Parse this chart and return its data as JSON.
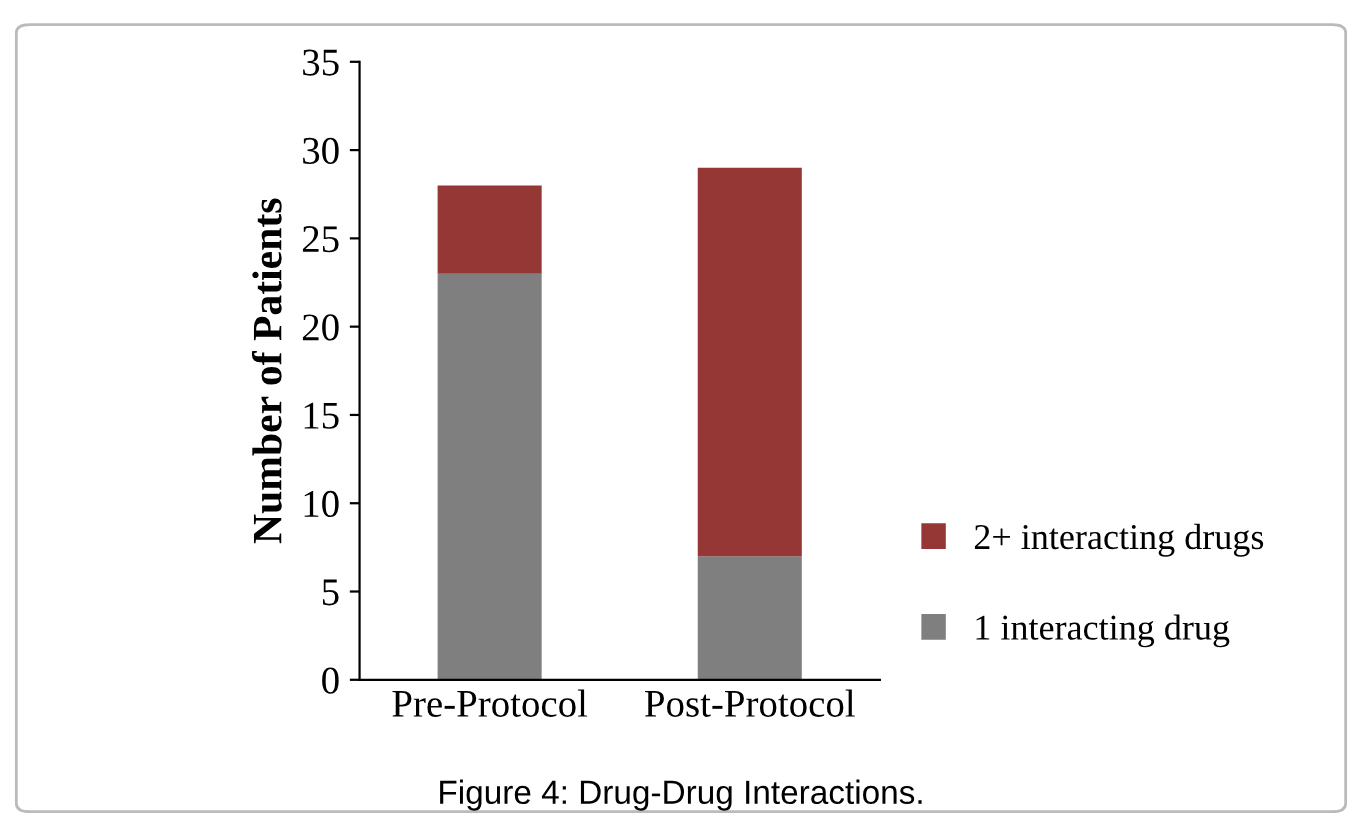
{
  "chart_data": {
    "type": "bar",
    "stacked": true,
    "ylabel": "Number of Patients",
    "categories": [
      "Pre-Protocol",
      "Post-Protocol"
    ],
    "series": [
      {
        "name": "1 interacting drug",
        "color": "#7f7f7f",
        "values": [
          23,
          7
        ]
      },
      {
        "name": "2+ interacting drugs",
        "color": "#953735",
        "values": [
          5,
          22
        ]
      }
    ],
    "ylim": [
      0,
      35
    ],
    "yticks": [
      0,
      5,
      10,
      15,
      20,
      25,
      30,
      35
    ],
    "grid": false,
    "legend": "right",
    "annotations": [
      "Figure 4: Drug-Drug Interactions."
    ]
  }
}
